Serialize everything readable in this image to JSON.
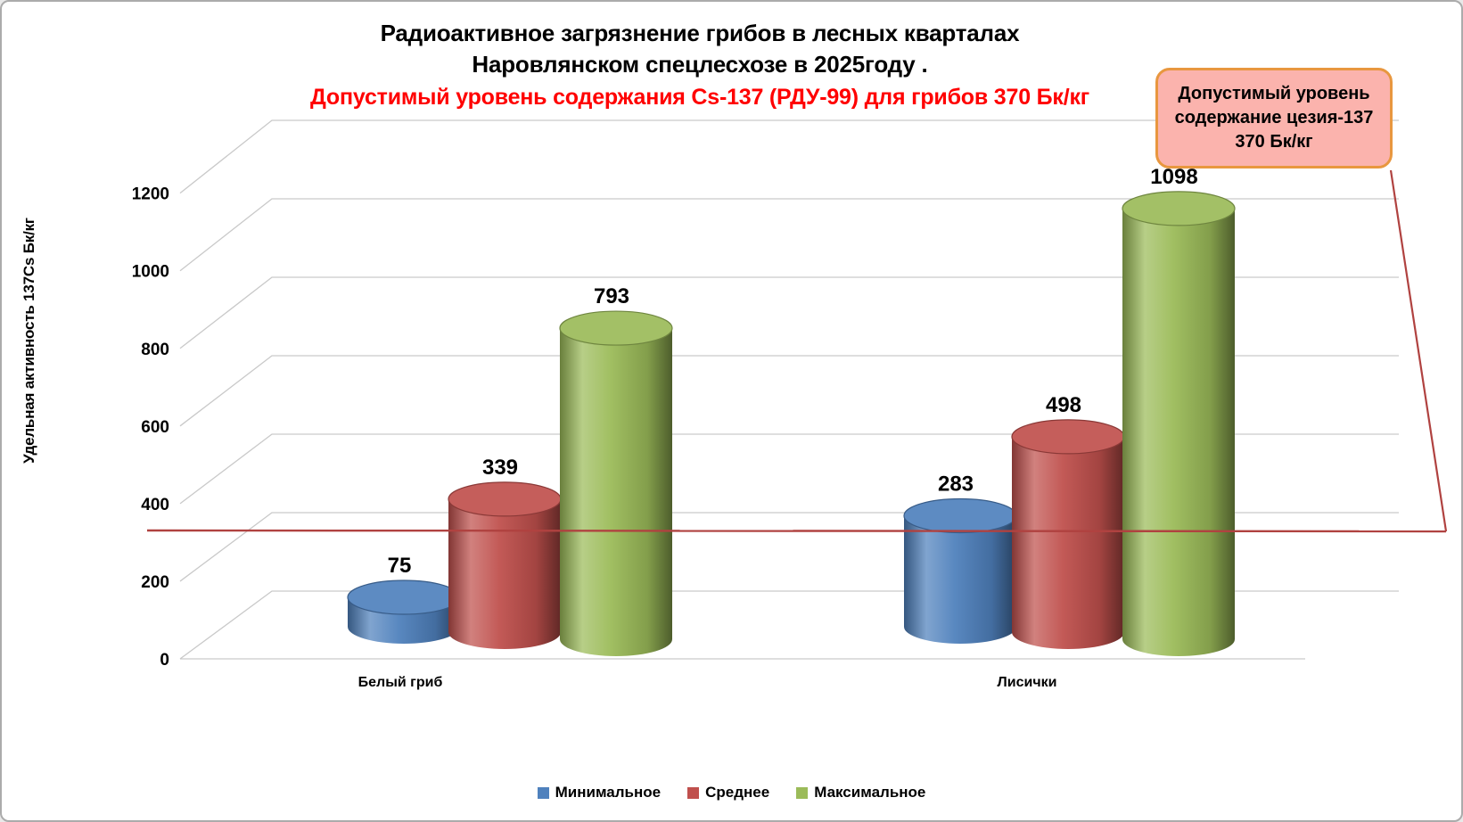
{
  "chart_data": {
    "type": "bar",
    "subtype": "3d-cylinder",
    "title_lines": [
      "Радиоактивное загрязнение грибов в лесных кварталах",
      "Наровлянском спецлесхозе в 2025году ."
    ],
    "subtitle_red": "Допустимый уровень содержания Cs-137 (РДУ-99) для грибов 370 Бк/кг",
    "subtitle_color": "#ff0000",
    "ylabel": "Удельная активность 137Cs Бк/кг",
    "categories": [
      "Белый гриб",
      "Лисички"
    ],
    "series": [
      {
        "name": "Минимальное",
        "color": "#4F81BD",
        "values": [
          75,
          283
        ]
      },
      {
        "name": "Среднее",
        "color": "#C0504D",
        "values": [
          339,
          498
        ]
      },
      {
        "name": "Максимальное",
        "color": "#9BBB59",
        "values": [
          793,
          1098
        ]
      }
    ],
    "yticks": [
      0,
      200,
      400,
      600,
      800,
      1000,
      1200
    ],
    "ylim": [
      0,
      1200
    ],
    "grid": true,
    "grid_color": "#c9c9c9",
    "legend_position": "bottom",
    "limit_line": {
      "value": 370,
      "color": "#b04240"
    },
    "callout": {
      "lines": [
        "Допустимый уровень",
        "содержание цезия-137",
        "370 Бк/кг"
      ],
      "fill": "#fbb3ad",
      "border": "#e8973f"
    }
  }
}
